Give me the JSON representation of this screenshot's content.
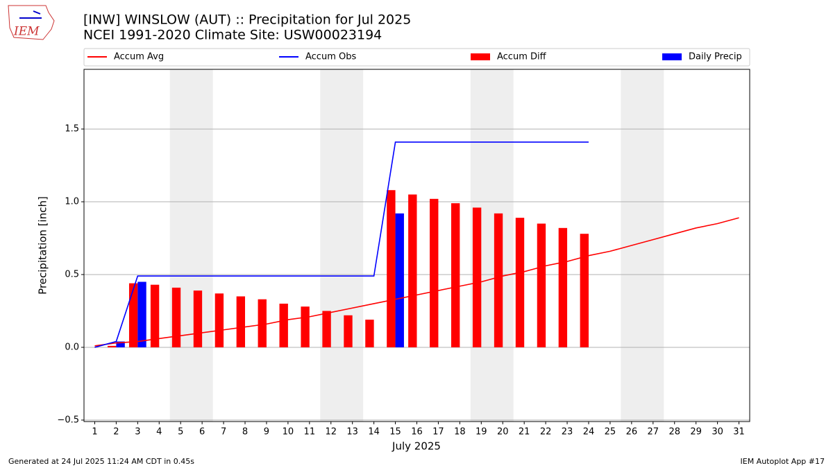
{
  "logo_text": "IEM",
  "footer_left": "Generated at 24 Jul 2025 11:24 AM CDT in 0.45s",
  "footer_right": "IEM Autoplot App #17",
  "chart_data": {
    "type": "bar",
    "title": "[INW] WINSLOW (AUT) :: Precipitation for Jul 2025",
    "subtitle": "NCEI 1991-2020 Climate Site: USW00023194",
    "xlabel": "July 2025",
    "ylabel": "Precipitation [inch]",
    "x": [
      1,
      2,
      3,
      4,
      5,
      6,
      7,
      8,
      9,
      10,
      11,
      12,
      13,
      14,
      15,
      16,
      17,
      18,
      19,
      20,
      21,
      22,
      23,
      24,
      25,
      26,
      27,
      28,
      29,
      30,
      31
    ],
    "xlim": [
      0.5,
      31.5
    ],
    "xticks": [
      1,
      2,
      3,
      4,
      5,
      6,
      7,
      8,
      9,
      10,
      11,
      12,
      13,
      14,
      15,
      16,
      17,
      18,
      19,
      20,
      21,
      22,
      23,
      24,
      25,
      26,
      27,
      28,
      29,
      30,
      31
    ],
    "ylim": [
      -0.51,
      1.91
    ],
    "yticks": [
      {
        "value": -0.5,
        "label": "−0.5"
      },
      {
        "value": 0,
        "label": "0.0"
      },
      {
        "value": 0.5,
        "label": "0.5"
      },
      {
        "value": 1,
        "label": "1.0"
      },
      {
        "value": 1.5,
        "label": "1.5"
      }
    ],
    "grid": true,
    "legend": "top",
    "shaded_days": [
      [
        4.5,
        6.5
      ],
      [
        11.5,
        13.5
      ],
      [
        18.5,
        20.5
      ],
      [
        25.5,
        27.5
      ]
    ],
    "shade_color": "#eeeeee",
    "series": [
      {
        "name": "Accum Avg",
        "type": "line",
        "color": "#ff0000",
        "values": [
          0.01,
          0.03,
          0.04,
          0.06,
          0.08,
          0.1,
          0.12,
          0.14,
          0.16,
          0.19,
          0.21,
          0.24,
          0.27,
          0.3,
          0.33,
          0.36,
          0.39,
          0.42,
          0.45,
          0.49,
          0.52,
          0.56,
          0.59,
          0.63,
          0.66,
          0.7,
          0.74,
          0.78,
          0.82,
          0.85,
          0.89
        ]
      },
      {
        "name": "Accum Obs",
        "type": "line",
        "color": "#0000ff",
        "values": [
          0,
          0.04,
          0.49,
          0.49,
          0.49,
          0.49,
          0.49,
          0.49,
          0.49,
          0.49,
          0.49,
          0.49,
          0.49,
          0.49,
          1.41,
          1.41,
          1.41,
          1.41,
          1.41,
          1.41,
          1.41,
          1.41,
          1.41,
          1.41,
          null,
          null,
          null,
          null,
          null,
          null,
          null
        ]
      },
      {
        "name": "Accum Diff",
        "type": "bar",
        "color": "#ff0000",
        "values": [
          0,
          0.01,
          0.44,
          0.43,
          0.41,
          0.39,
          0.37,
          0.35,
          0.33,
          0.3,
          0.28,
          0.25,
          0.22,
          0.19,
          1.08,
          1.05,
          1.02,
          0.99,
          0.96,
          0.92,
          0.89,
          0.85,
          0.82,
          0.78,
          null,
          null,
          null,
          null,
          null,
          null,
          null
        ]
      },
      {
        "name": "Daily Precip",
        "type": "bar",
        "color": "#0000ff",
        "values": [
          0,
          0.04,
          0.45,
          0,
          0,
          0,
          0,
          0,
          0,
          0,
          0,
          0,
          0,
          0,
          0.92,
          0,
          0,
          0,
          0,
          0,
          0,
          0,
          0,
          0,
          null,
          null,
          null,
          null,
          null,
          null,
          null
        ]
      }
    ]
  }
}
